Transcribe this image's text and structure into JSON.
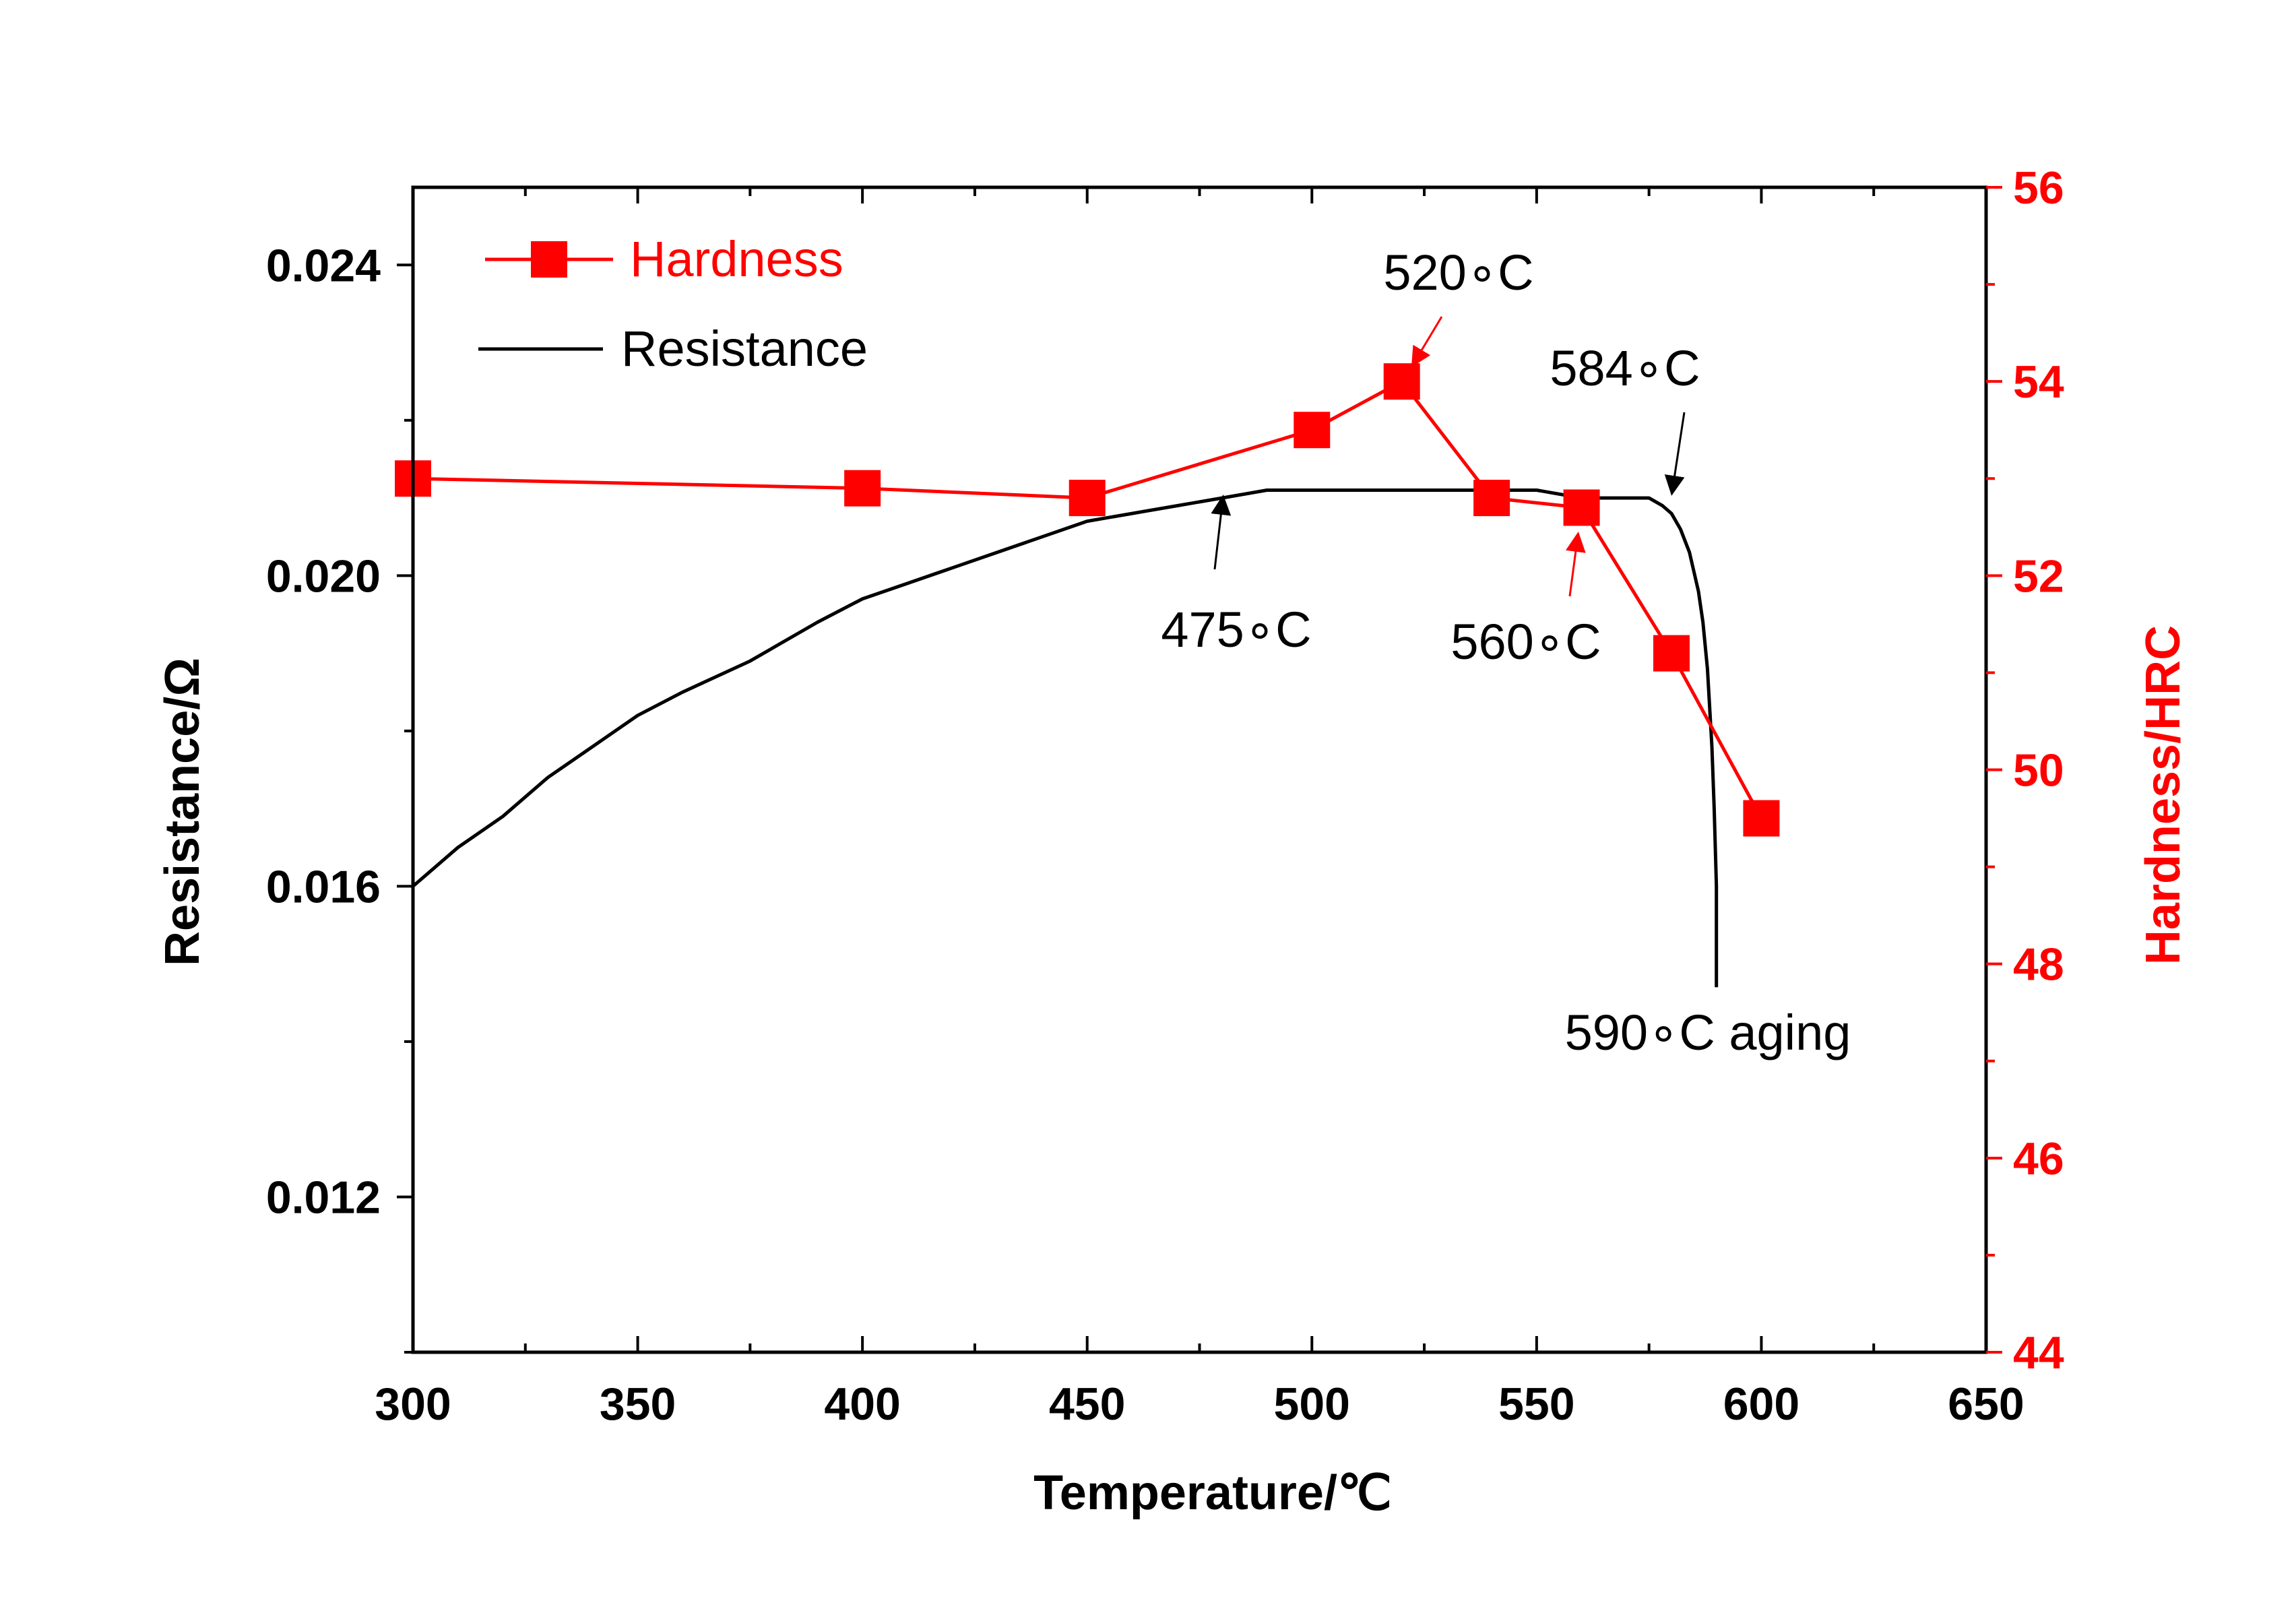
{
  "chart_data": {
    "type": "line",
    "title": "",
    "xlabel": "Temperature/℃",
    "ylabel_left": "Resistance/Ω",
    "ylabel_right": "Hardness/HRC",
    "xlim": [
      300,
      650
    ],
    "ylim_left": [
      0.01,
      0.025
    ],
    "ylim_right": [
      44,
      56
    ],
    "x_ticks": [
      "300",
      "350",
      "400",
      "450",
      "500",
      "550",
      "600",
      "650"
    ],
    "y_left_ticks": [
      "0.012",
      "0.016",
      "0.020",
      "0.024"
    ],
    "y_right_ticks": [
      "44",
      "46",
      "48",
      "50",
      "52",
      "54",
      "56"
    ],
    "legend_position": "top-left",
    "colors": {
      "hardness": "#ff0000",
      "resistance": "#000000"
    },
    "series": [
      {
        "name": "Hardness",
        "axis": "right",
        "marker": "square",
        "x": [
          300,
          400,
          450,
          500,
          520,
          540,
          560,
          580,
          600
        ],
        "y": [
          53.0,
          52.9,
          52.8,
          53.5,
          54.0,
          52.8,
          52.7,
          51.2,
          49.5
        ]
      },
      {
        "name": "Resistance",
        "axis": "left",
        "x": [
          300,
          310,
          320,
          330,
          340,
          350,
          360,
          375,
          390,
          400,
          410,
          420,
          430,
          440,
          450,
          460,
          470,
          480,
          490,
          500,
          510,
          520,
          530,
          540,
          550,
          560,
          570,
          575,
          578,
          580,
          582,
          584,
          586,
          587,
          588,
          589,
          589.5,
          590,
          590
        ],
        "y": [
          0.016,
          0.0165,
          0.0169,
          0.0174,
          0.0178,
          0.0182,
          0.0185,
          0.0189,
          0.0194,
          0.0197,
          0.0199,
          0.0201,
          0.0203,
          0.0205,
          0.0207,
          0.0208,
          0.0209,
          0.021,
          0.0211,
          0.0211,
          0.0211,
          0.0211,
          0.0211,
          0.0211,
          0.0211,
          0.021,
          0.021,
          0.021,
          0.0209,
          0.0208,
          0.0206,
          0.0203,
          0.0198,
          0.0194,
          0.0188,
          0.0178,
          0.017,
          0.016,
          0.0147
        ]
      }
    ],
    "annotations": [
      {
        "text": "520∘C",
        "x": 520,
        "axis": "right",
        "y": 54.0,
        "color": "#ff0000"
      },
      {
        "text": "584∘C",
        "x": 584,
        "axis": "left",
        "y": 0.021,
        "color": "#000000"
      },
      {
        "text": "475∘C",
        "x": 475,
        "axis": "left",
        "y": 0.021,
        "color": "#000000"
      },
      {
        "text": "560∘C",
        "x": 560,
        "axis": "right",
        "y": 52.7,
        "color": "#ff0000"
      },
      {
        "text": "590∘C aging",
        "x": 590,
        "axis": "left",
        "y": 0.0147,
        "color": "#000000"
      }
    ]
  }
}
